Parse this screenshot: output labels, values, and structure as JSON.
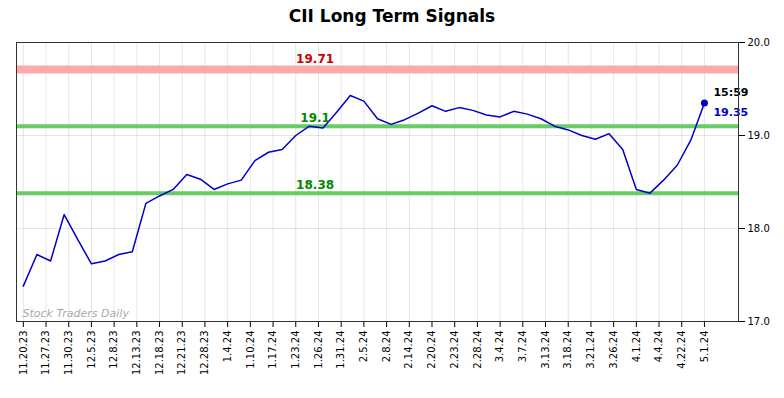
{
  "chart_data": {
    "type": "line",
    "title": "CII Long Term Signals",
    "color": "#0000cc",
    "values": [
      17.38,
      17.72,
      17.65,
      18.15,
      17.88,
      17.62,
      17.65,
      17.72,
      17.75,
      18.27,
      18.35,
      18.42,
      18.58,
      18.53,
      18.42,
      18.48,
      18.52,
      18.73,
      18.82,
      18.85,
      19.0,
      19.1,
      19.08,
      19.25,
      19.43,
      19.37,
      19.18,
      19.12,
      19.17,
      19.24,
      19.32,
      19.26,
      19.3,
      19.27,
      19.22,
      19.2,
      19.26,
      19.23,
      19.18,
      19.1,
      19.06,
      19.0,
      18.96,
      19.02,
      18.85,
      18.42,
      18.38,
      18.52,
      18.68,
      18.95,
      19.35
    ],
    "xlim": [
      -0.5,
      52.5
    ],
    "xticks": [
      {
        "value": 0,
        "label": "11.20.23"
      },
      {
        "value": 1.6667,
        "label": "11.27.23"
      },
      {
        "value": 3.3333,
        "label": "11.30.23"
      },
      {
        "value": 5,
        "label": "12.5.23"
      },
      {
        "value": 6.6667,
        "label": "12.8.23"
      },
      {
        "value": 8.3333,
        "label": "12.13.23"
      },
      {
        "value": 10,
        "label": "12.18.23"
      },
      {
        "value": 11.6667,
        "label": "12.21.23"
      },
      {
        "value": 13.3333,
        "label": "12.28.23"
      },
      {
        "value": 15,
        "label": "1.4.24"
      },
      {
        "value": 16.6667,
        "label": "1.10.24"
      },
      {
        "value": 18.3333,
        "label": "1.17.24"
      },
      {
        "value": 20,
        "label": "1.23.24"
      },
      {
        "value": 21.6667,
        "label": "1.26.24"
      },
      {
        "value": 23.3333,
        "label": "1.31.24"
      },
      {
        "value": 25,
        "label": "2.5.24"
      },
      {
        "value": 26.6667,
        "label": "2.8.24"
      },
      {
        "value": 28.3333,
        "label": "2.14.24"
      },
      {
        "value": 30,
        "label": "2.20.24"
      },
      {
        "value": 31.6667,
        "label": "2.23.24"
      },
      {
        "value": 33.3333,
        "label": "2.28.24"
      },
      {
        "value": 35,
        "label": "3.4.24"
      },
      {
        "value": 36.6667,
        "label": "3.7.24"
      },
      {
        "value": 38.3333,
        "label": "3.13.24"
      },
      {
        "value": 40,
        "label": "3.18.24"
      },
      {
        "value": 41.6667,
        "label": "3.21.24"
      },
      {
        "value": 43.3333,
        "label": "3.26.24"
      },
      {
        "value": 45,
        "label": "4.1.24"
      },
      {
        "value": 46.6667,
        "label": "4.4.24"
      },
      {
        "value": 48.3333,
        "label": "4.22.24"
      },
      {
        "value": 50,
        "label": "5.1.24"
      }
    ],
    "ylim": [
      17,
      20
    ],
    "yticks": [
      17,
      18,
      19,
      20
    ],
    "grid": true,
    "hlines": [
      {
        "value": 19.71,
        "color": "#ffaaaa",
        "label_color": "#cc0000"
      },
      {
        "value": 19.1,
        "color": "#66cc66",
        "label_color": "#008800"
      },
      {
        "value": 18.38,
        "color": "#66cc66",
        "label_color": "#008800"
      }
    ],
    "annotations": [
      {
        "text": "15:59",
        "color": "#000000"
      },
      {
        "text": "19.35",
        "color": "#0000cc"
      },
      {
        "text": "Stock Traders Daily",
        "color": "#aaaaaa"
      }
    ]
  }
}
